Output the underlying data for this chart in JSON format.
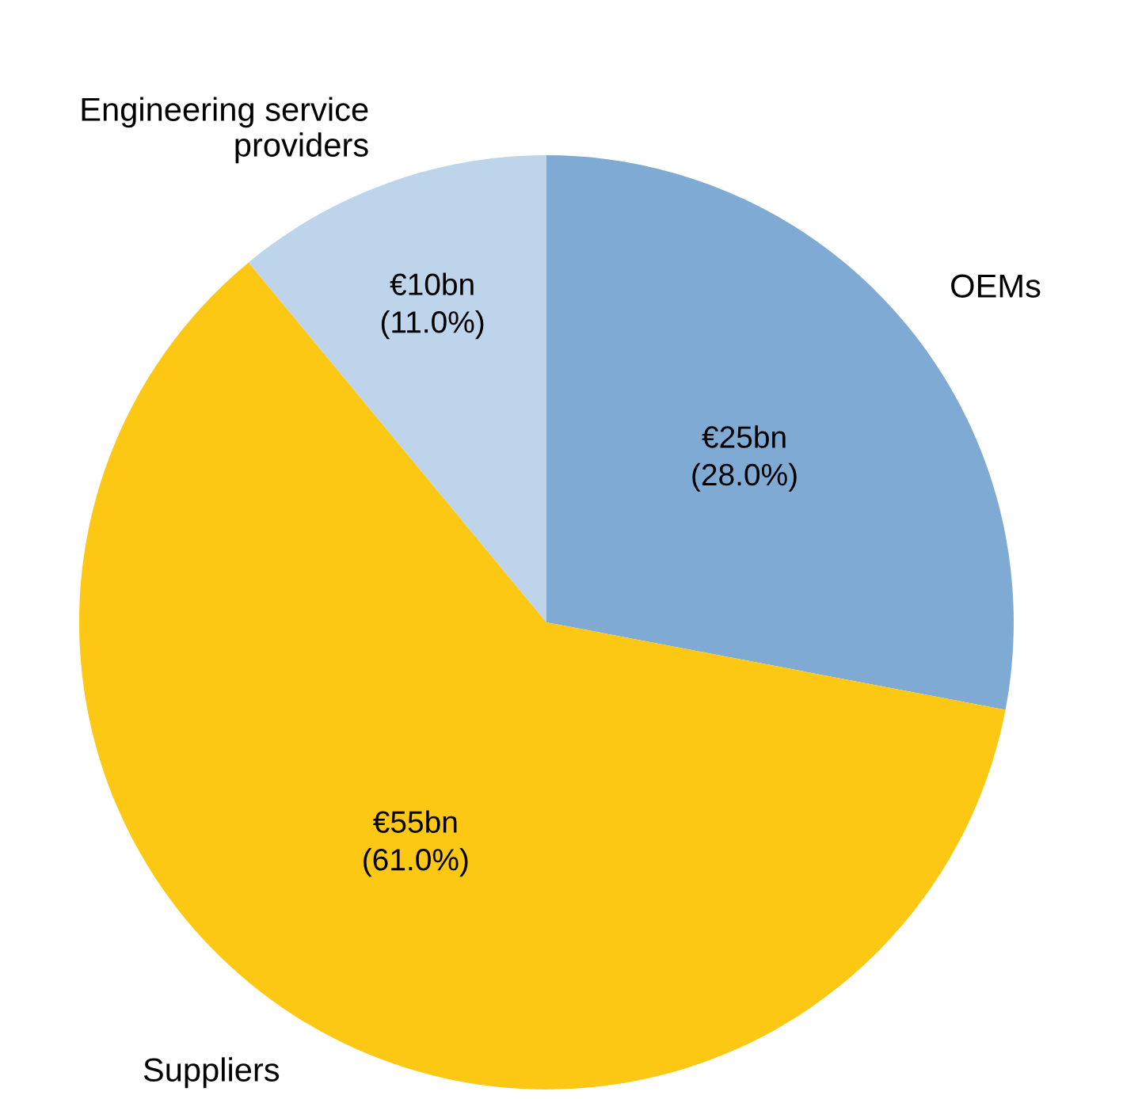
{
  "chart_data": {
    "type": "pie",
    "categories": [
      "OEMs",
      "Suppliers",
      "Engineering service providers"
    ],
    "values": [
      28.0,
      61.0,
      11.0
    ],
    "colors": [
      "#7faad4",
      "#fcc814",
      "#bdd4ea"
    ],
    "value_labels": [
      "€25bn\n(28.0%)",
      "€55bn\n(61.0%)",
      "€10bn\n(11.0%)"
    ]
  }
}
